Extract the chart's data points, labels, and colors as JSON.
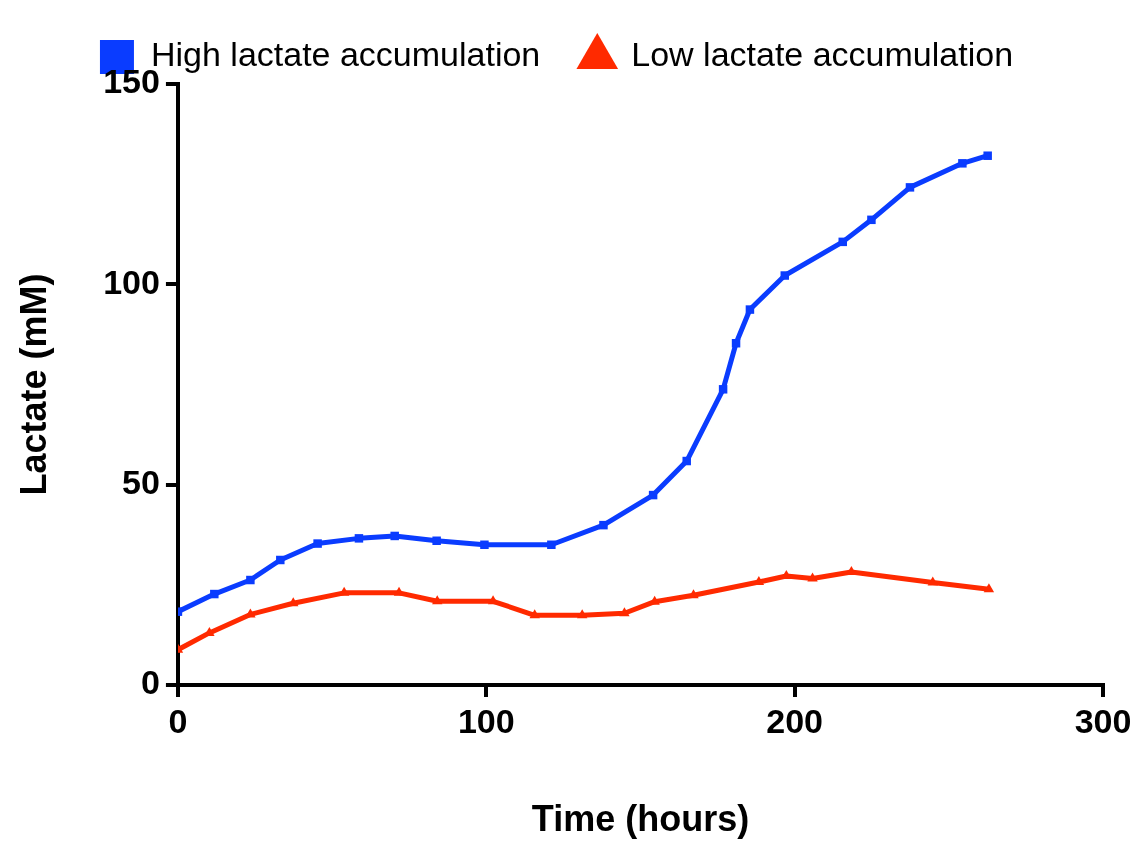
{
  "chart_data": {
    "type": "line",
    "xlabel": "Time (hours)",
    "ylabel": "Lactate (mM)",
    "xlim": [
      0,
      300
    ],
    "xticks": [
      0,
      100,
      200,
      300
    ],
    "ylim": [
      0,
      150
    ],
    "yticks": [
      0,
      50,
      100,
      150
    ],
    "grid": false,
    "legend": "top",
    "series": [
      {
        "name": "High lactate accumulation",
        "color": "#0a3cff",
        "marker": "square",
        "x": [
          0,
          11.8,
          23.5,
          33.2,
          45.3,
          58.7,
          70.3,
          83.9,
          99.4,
          121.1,
          138,
          154.1,
          165,
          176.8,
          181,
          185.5,
          196.8,
          215.6,
          224.9,
          237.4,
          254.4,
          262.6
        ],
        "values": [
          18.3,
          22.7,
          26.2,
          31.2,
          35.3,
          36.6,
          37.2,
          36,
          35,
          35,
          39.9,
          47.4,
          55.9,
          73.8,
          85.3,
          93.7,
          102.2,
          110.6,
          116.1,
          124.2,
          130.2,
          132.1
        ]
      },
      {
        "name": "Low lactate accumulation",
        "color": "#ff2a00",
        "marker": "triangle",
        "x": [
          0,
          10.2,
          23.5,
          37.4,
          53.9,
          71.7,
          84.1,
          102.2,
          115.7,
          131.1,
          144.8,
          154.6,
          167.2,
          188.4,
          197.3,
          205.8,
          218.4,
          244.8,
          263
        ],
        "values": [
          8.8,
          13,
          17.6,
          20.4,
          23,
          23,
          20.9,
          20.9,
          17.4,
          17.4,
          17.9,
          20.8,
          22.4,
          25.7,
          27.2,
          26.6,
          28.2,
          25.6,
          23.9
        ]
      }
    ]
  }
}
